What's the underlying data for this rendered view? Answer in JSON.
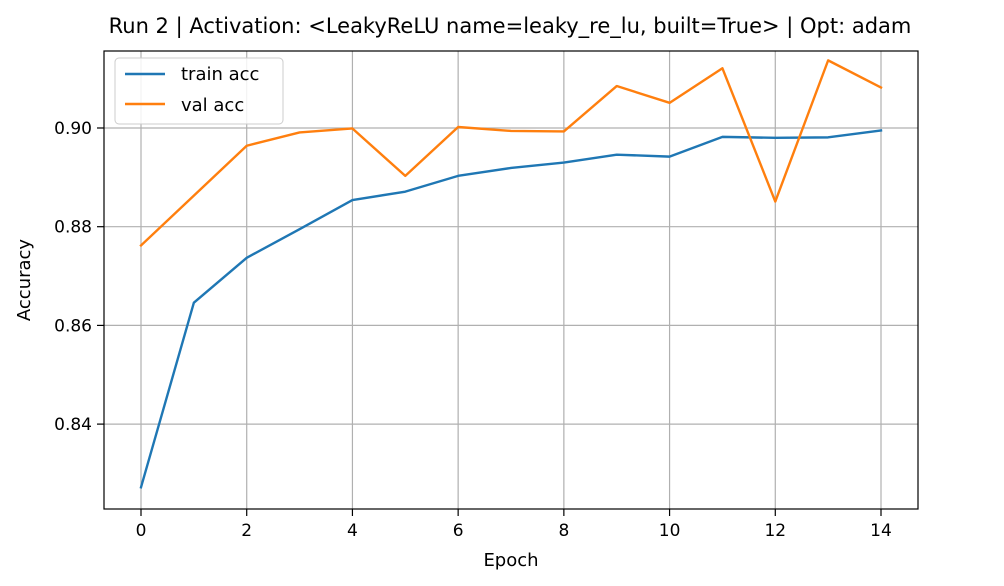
{
  "chart_data": {
    "type": "line",
    "title": "Run 2 | Activation: <LeakyReLU name=leaky_re_lu, built=True> | Opt: adam",
    "xlabel": "Epoch",
    "ylabel": "Accuracy",
    "xlim": [
      -0.7,
      14.7
    ],
    "ylim": [
      0.8228,
      0.9156
    ],
    "xticks": [
      0,
      2,
      4,
      6,
      8,
      10,
      12,
      14
    ],
    "yticks": [
      0.84,
      0.86,
      0.88,
      0.9
    ],
    "xtick_labels": [
      "0",
      "2",
      "4",
      "6",
      "8",
      "10",
      "12",
      "14"
    ],
    "ytick_labels": [
      "0.84",
      "0.86",
      "0.88",
      "0.90"
    ],
    "grid": true,
    "legend": {
      "placement": "top-left"
    },
    "x": [
      0,
      1,
      2,
      3,
      4,
      5,
      6,
      7,
      8,
      9,
      10,
      11,
      12,
      13,
      14
    ],
    "series": [
      {
        "name": "train acc",
        "color": "#1f77b4",
        "values": [
          0.8272,
          0.8646,
          0.8737,
          0.8795,
          0.8854,
          0.8871,
          0.8903,
          0.8919,
          0.893,
          0.8946,
          0.8942,
          0.8982,
          0.898,
          0.8981,
          0.8995
        ]
      },
      {
        "name": "val acc",
        "color": "#ff7f0e",
        "values": [
          0.8762,
          0.8863,
          0.8964,
          0.8991,
          0.8999,
          0.8903,
          0.9002,
          0.8994,
          0.8993,
          0.9085,
          0.9051,
          0.9121,
          0.8851,
          0.9137,
          0.9082
        ]
      }
    ]
  }
}
